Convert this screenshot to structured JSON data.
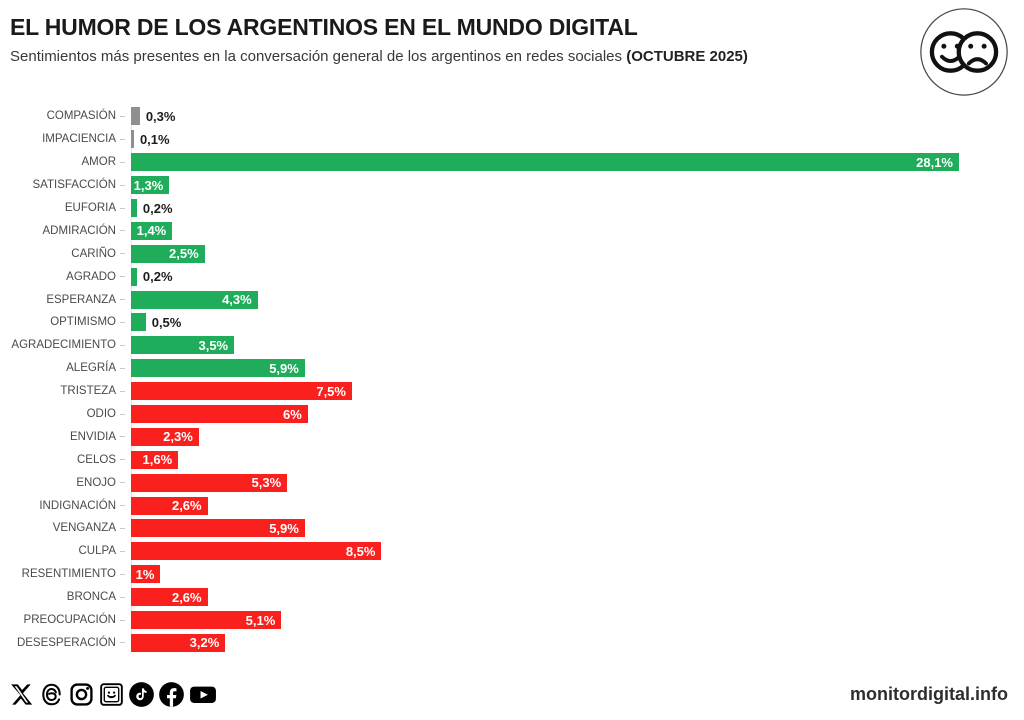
{
  "header": {
    "title": "EL HUMOR DE LOS ARGENTINOS EN EL MUNDO DIGITAL",
    "subtitle": "Sentimientos más presentes en la conversación general de los argentinos en redes sociales",
    "subtitle_bold": "(OCTUBRE 2025)"
  },
  "colors": {
    "positive": "#1fad5c",
    "negative": "#f9201e",
    "neutral": "#8f8f8f"
  },
  "chart_data": {
    "type": "bar",
    "orientation": "horizontal",
    "title": "EL HUMOR DE LOS ARGENTINOS EN EL MUNDO DIGITAL",
    "subtitle": "Sentimientos más presentes en la conversación general de los argentinos en redes sociales (OCTUBRE 2025)",
    "unit": "%",
    "xlim": [
      0,
      28.1
    ],
    "grid": false,
    "legend": false,
    "categories": [
      "COMPASIÓN",
      "IMPACIENCIA",
      "AMOR",
      "SATISFACCIÓN",
      "EUFORIA",
      "ADMIRACIÓN",
      "CARIÑO",
      "AGRADO",
      "ESPERANZA",
      "OPTIMISMO",
      "AGRADECIMIENTO",
      "ALEGRÍA",
      "TRISTEZA",
      "ODIO",
      "ENVIDIA",
      "CELOS",
      "ENOJO",
      "INDIGNACIÓN",
      "VENGANZA",
      "CULPA",
      "RESENTIMIENTO",
      "BRONCA",
      "PREOCUPACIÓN",
      "DESESPERACIÓN"
    ],
    "values": [
      0.3,
      0.1,
      28.1,
      1.3,
      0.2,
      1.4,
      2.5,
      0.2,
      4.3,
      0.5,
      3.5,
      5.9,
      7.5,
      6,
      2.3,
      1.6,
      5.3,
      2.6,
      5.9,
      8.5,
      1,
      2.6,
      5.1,
      3.2
    ],
    "value_labels": [
      "0,3%",
      "0,1%",
      "28,1%",
      "1,3%",
      "0,2%",
      "1,4%",
      "2,5%",
      "0,2%",
      "4,3%",
      "0,5%",
      "3,5%",
      "5,9%",
      "7,5%",
      "6%",
      "2,3%",
      "1,6%",
      "5,3%",
      "2,6%",
      "5,9%",
      "8,5%",
      "1%",
      "2,6%",
      "5,1%",
      "3,2%"
    ],
    "groups": [
      "neutral",
      "neutral",
      "positive",
      "positive",
      "positive",
      "positive",
      "positive",
      "positive",
      "positive",
      "positive",
      "positive",
      "positive",
      "negative",
      "negative",
      "negative",
      "negative",
      "negative",
      "negative",
      "negative",
      "negative",
      "negative",
      "negative",
      "negative",
      "negative"
    ]
  },
  "footer": {
    "site": "monitordigital.info",
    "social_icons": [
      "x",
      "threads",
      "instagram",
      "forum-smiley",
      "tiktok",
      "facebook",
      "youtube"
    ]
  }
}
